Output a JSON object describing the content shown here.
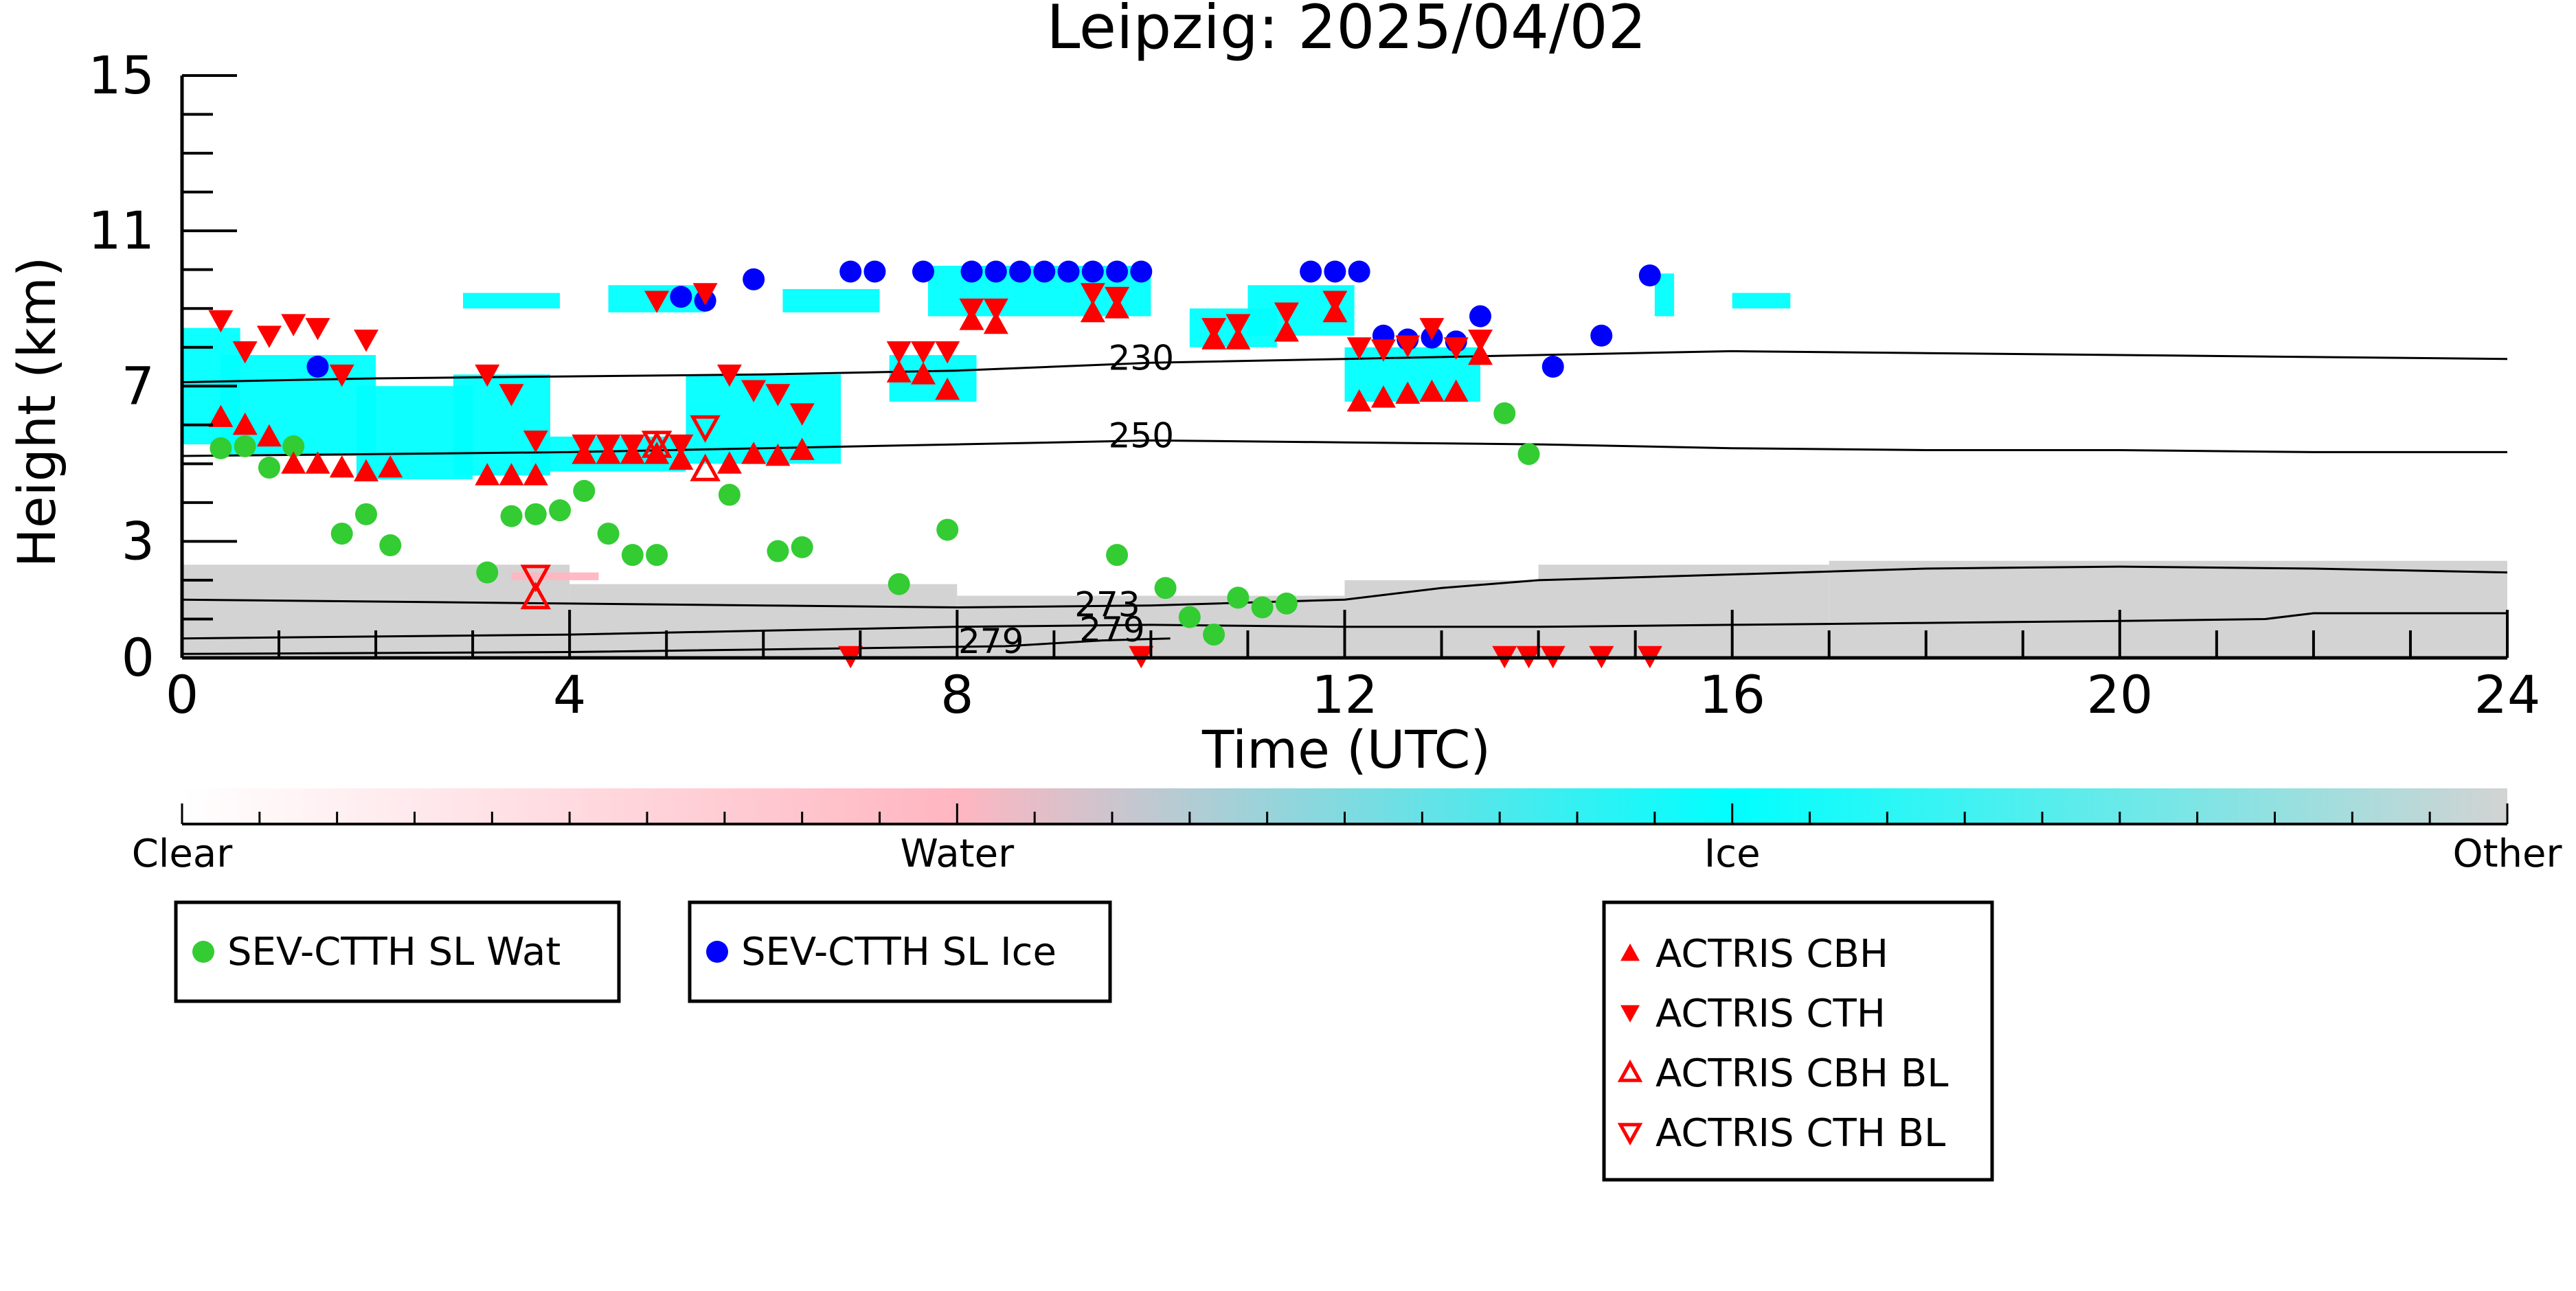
{
  "chart_data": {
    "type": "scatter",
    "title": "Leipzig: 2025/04/02",
    "xlabel": "Time (UTC)",
    "ylabel": "Height (km)",
    "xlim": [
      0,
      24
    ],
    "ylim": [
      0,
      15
    ],
    "x_ticks": [
      0,
      4,
      8,
      12,
      16,
      20,
      24
    ],
    "y_ticks": [
      0,
      3,
      7,
      11,
      15
    ],
    "colorbar": {
      "labels": [
        "Clear",
        "Water",
        "Ice",
        "Other"
      ],
      "colors": [
        "#ffffff",
        "#ffb6c1",
        "#00ffff",
        "#d3d3d3"
      ]
    },
    "isotherms": [
      {
        "label": "230",
        "points": [
          [
            0,
            7.1
          ],
          [
            2,
            7.2
          ],
          [
            4,
            7.25
          ],
          [
            6,
            7.3
          ],
          [
            8,
            7.4
          ],
          [
            10,
            7.6
          ],
          [
            12,
            7.7
          ],
          [
            14,
            7.8
          ],
          [
            16,
            7.9
          ],
          [
            18,
            7.85
          ],
          [
            20,
            7.8
          ],
          [
            22,
            7.75
          ],
          [
            24,
            7.7
          ]
        ]
      },
      {
        "label": "250",
        "points": [
          [
            0,
            5.2
          ],
          [
            2,
            5.25
          ],
          [
            4,
            5.3
          ],
          [
            6,
            5.4
          ],
          [
            8,
            5.5
          ],
          [
            10,
            5.6
          ],
          [
            12,
            5.55
          ],
          [
            14,
            5.5
          ],
          [
            16,
            5.4
          ],
          [
            18,
            5.35
          ],
          [
            20,
            5.35
          ],
          [
            22,
            5.3
          ],
          [
            24,
            5.3
          ]
        ]
      },
      {
        "label": "273",
        "points": [
          [
            0,
            1.5
          ],
          [
            2,
            1.45
          ],
          [
            4,
            1.4
          ],
          [
            6,
            1.35
          ],
          [
            8,
            1.3
          ],
          [
            10,
            1.35
          ],
          [
            12,
            1.5
          ],
          [
            13,
            1.8
          ],
          [
            14,
            2.0
          ],
          [
            16,
            2.15
          ],
          [
            18,
            2.3
          ],
          [
            20,
            2.35
          ],
          [
            22,
            2.3
          ],
          [
            24,
            2.2
          ]
        ]
      },
      {
        "label": "279",
        "points": [
          [
            0,
            0.5
          ],
          [
            2,
            0.55
          ],
          [
            4,
            0.6
          ],
          [
            6,
            0.7
          ],
          [
            8,
            0.8
          ],
          [
            10,
            0.85
          ],
          [
            12,
            0.8
          ],
          [
            14,
            0.8
          ],
          [
            16,
            0.85
          ],
          [
            18,
            0.9
          ],
          [
            20,
            0.95
          ],
          [
            21.5,
            1.0
          ],
          [
            22,
            1.15
          ],
          [
            24,
            1.15
          ]
        ]
      },
      {
        "label": "279",
        "points": [
          [
            0,
            0.1
          ],
          [
            4,
            0.15
          ],
          [
            7,
            0.25
          ],
          [
            8.5,
            0.3
          ],
          [
            9.5,
            0.45
          ],
          [
            10.2,
            0.5
          ]
        ]
      }
    ],
    "contour_label_positions": [
      {
        "label": "230",
        "x": 9.9,
        "y": 7.6
      },
      {
        "label": "250",
        "x": 9.9,
        "y": 5.6
      },
      {
        "label": "273",
        "x": 9.55,
        "y": 1.25
      },
      {
        "label": "279",
        "x": 9.6,
        "y": 0.6
      },
      {
        "label": "279",
        "x": 8.35,
        "y": 0.3
      }
    ],
    "cloud_mask": {
      "ice": [
        {
          "x0": 0.0,
          "x1": 0.6,
          "y0": 5.5,
          "y1": 8.5
        },
        {
          "x0": 0.4,
          "x1": 2.0,
          "y0": 5.2,
          "y1": 7.8
        },
        {
          "x0": 1.8,
          "x1": 3.0,
          "y0": 4.6,
          "y1": 7.0
        },
        {
          "x0": 2.8,
          "x1": 3.8,
          "y0": 4.7,
          "y1": 7.3
        },
        {
          "x0": 3.6,
          "x1": 5.2,
          "y0": 4.8,
          "y1": 5.7
        },
        {
          "x0": 5.2,
          "x1": 6.8,
          "y0": 5.0,
          "y1": 7.3
        },
        {
          "x0": 2.9,
          "x1": 3.9,
          "y0": 9.0,
          "y1": 9.4
        },
        {
          "x0": 4.4,
          "x1": 5.4,
          "y0": 8.9,
          "y1": 9.6
        },
        {
          "x0": 6.2,
          "x1": 7.2,
          "y0": 8.9,
          "y1": 9.5
        },
        {
          "x0": 7.3,
          "x1": 8.2,
          "y0": 6.6,
          "y1": 7.8
        },
        {
          "x0": 7.7,
          "x1": 10.0,
          "y0": 8.8,
          "y1": 10.1
        },
        {
          "x0": 10.4,
          "x1": 11.3,
          "y0": 8.0,
          "y1": 9.0
        },
        {
          "x0": 11.0,
          "x1": 12.1,
          "y0": 8.3,
          "y1": 9.6
        },
        {
          "x0": 12.0,
          "x1": 13.4,
          "y0": 6.6,
          "y1": 8.0
        },
        {
          "x0": 15.2,
          "x1": 15.4,
          "y0": 8.8,
          "y1": 9.9
        },
        {
          "x0": 16.0,
          "x1": 16.6,
          "y0": 9.0,
          "y1": 9.4
        }
      ],
      "water": [
        {
          "x0": 3.4,
          "x1": 4.3,
          "y0": 2.0,
          "y1": 2.2
        }
      ],
      "other": [
        {
          "x0": 0.0,
          "x1": 4.0,
          "y0": 0.0,
          "y1": 2.4
        },
        {
          "x0": 4.0,
          "x1": 8.0,
          "y0": 0.0,
          "y1": 1.9
        },
        {
          "x0": 8.0,
          "x1": 12.0,
          "y0": 0.0,
          "y1": 1.6
        },
        {
          "x0": 12.0,
          "x1": 14.0,
          "y0": 0.0,
          "y1": 2.0
        },
        {
          "x0": 14.0,
          "x1": 17.0,
          "y0": 0.0,
          "y1": 2.4
        },
        {
          "x0": 17.0,
          "x1": 24.0,
          "y0": 0.0,
          "y1": 2.5
        }
      ]
    },
    "series": [
      {
        "name": "SEV-CTTH SL Wat",
        "marker": "circle",
        "color": "#33cc33",
        "points": [
          [
            0.4,
            5.4
          ],
          [
            0.65,
            5.45
          ],
          [
            0.9,
            4.9
          ],
          [
            1.15,
            5.45
          ],
          [
            1.65,
            3.2
          ],
          [
            1.9,
            3.7
          ],
          [
            2.15,
            2.9
          ],
          [
            3.15,
            2.2
          ],
          [
            3.4,
            3.65
          ],
          [
            3.65,
            3.7
          ],
          [
            3.9,
            3.8
          ],
          [
            4.15,
            4.3
          ],
          [
            4.4,
            3.2
          ],
          [
            4.65,
            2.65
          ],
          [
            4.9,
            2.65
          ],
          [
            5.65,
            4.2
          ],
          [
            6.15,
            2.75
          ],
          [
            6.4,
            2.85
          ],
          [
            7.4,
            1.9
          ],
          [
            7.9,
            3.3
          ],
          [
            9.65,
            2.65
          ],
          [
            10.15,
            1.8
          ],
          [
            10.4,
            1.05
          ],
          [
            10.65,
            0.6
          ],
          [
            10.9,
            1.55
          ],
          [
            11.15,
            1.3
          ],
          [
            11.4,
            1.4
          ],
          [
            13.65,
            6.3
          ],
          [
            13.9,
            5.25
          ]
        ]
      },
      {
        "name": "SEV-CTTH SL Ice",
        "marker": "circle",
        "color": "#0000ff",
        "points": [
          [
            1.4,
            7.5
          ],
          [
            5.15,
            9.3
          ],
          [
            5.4,
            9.2
          ],
          [
            5.9,
            9.75
          ],
          [
            6.9,
            9.95
          ],
          [
            7.15,
            9.95
          ],
          [
            7.65,
            9.95
          ],
          [
            8.15,
            9.95
          ],
          [
            8.4,
            9.95
          ],
          [
            8.65,
            9.95
          ],
          [
            8.9,
            9.95
          ],
          [
            9.15,
            9.95
          ],
          [
            9.4,
            9.95
          ],
          [
            9.65,
            9.95
          ],
          [
            9.9,
            9.95
          ],
          [
            11.65,
            9.95
          ],
          [
            11.9,
            9.95
          ],
          [
            12.15,
            9.95
          ],
          [
            12.4,
            8.3
          ],
          [
            12.65,
            8.2
          ],
          [
            12.9,
            8.25
          ],
          [
            13.15,
            8.15
          ],
          [
            13.4,
            8.8
          ],
          [
            14.15,
            7.5
          ],
          [
            14.65,
            8.3
          ],
          [
            15.15,
            9.85
          ]
        ]
      },
      {
        "name": "ACTRIS CBH",
        "marker": "triangle-up",
        "color": "#ff0000",
        "points": [
          [
            0.4,
            6.2
          ],
          [
            0.65,
            6.0
          ],
          [
            0.9,
            5.7
          ],
          [
            1.15,
            5.0
          ],
          [
            1.4,
            5.0
          ],
          [
            1.65,
            4.9
          ],
          [
            1.9,
            4.8
          ],
          [
            2.15,
            4.9
          ],
          [
            3.15,
            4.7
          ],
          [
            3.4,
            4.7
          ],
          [
            3.65,
            4.7
          ],
          [
            4.15,
            5.25
          ],
          [
            4.4,
            5.25
          ],
          [
            4.65,
            5.25
          ],
          [
            4.9,
            5.25
          ],
          [
            5.15,
            5.1
          ],
          [
            5.65,
            5.0
          ],
          [
            5.9,
            5.25
          ],
          [
            6.15,
            5.2
          ],
          [
            6.4,
            5.35
          ],
          [
            7.4,
            7.35
          ],
          [
            7.65,
            7.3
          ],
          [
            7.9,
            6.9
          ],
          [
            8.15,
            8.7
          ],
          [
            8.4,
            8.6
          ],
          [
            9.4,
            8.9
          ],
          [
            9.65,
            9.0
          ],
          [
            10.65,
            8.2
          ],
          [
            10.9,
            8.2
          ],
          [
            11.4,
            8.4
          ],
          [
            11.9,
            8.9
          ],
          [
            12.15,
            6.6
          ],
          [
            12.4,
            6.7
          ],
          [
            12.65,
            6.8
          ],
          [
            12.9,
            6.85
          ],
          [
            13.15,
            6.85
          ],
          [
            13.4,
            7.8
          ]
        ]
      },
      {
        "name": "ACTRIS CTH",
        "marker": "triangle-down",
        "color": "#ff0000",
        "points": [
          [
            0.4,
            8.7
          ],
          [
            0.65,
            7.9
          ],
          [
            0.9,
            8.3
          ],
          [
            1.15,
            8.6
          ],
          [
            1.4,
            8.5
          ],
          [
            1.65,
            7.3
          ],
          [
            1.9,
            8.2
          ],
          [
            3.15,
            7.3
          ],
          [
            3.4,
            6.8
          ],
          [
            3.65,
            5.6
          ],
          [
            4.15,
            5.5
          ],
          [
            4.4,
            5.5
          ],
          [
            4.65,
            5.5
          ],
          [
            4.9,
            9.2
          ],
          [
            5.15,
            5.5
          ],
          [
            5.4,
            9.4
          ],
          [
            5.65,
            7.3
          ],
          [
            5.9,
            6.9
          ],
          [
            6.15,
            6.8
          ],
          [
            6.4,
            6.3
          ],
          [
            7.4,
            7.9
          ],
          [
            7.65,
            7.9
          ],
          [
            7.9,
            7.9
          ],
          [
            8.15,
            9.0
          ],
          [
            8.4,
            9.0
          ],
          [
            9.4,
            9.4
          ],
          [
            9.65,
            9.3
          ],
          [
            10.65,
            8.5
          ],
          [
            10.9,
            8.6
          ],
          [
            11.4,
            8.9
          ],
          [
            11.9,
            9.2
          ],
          [
            12.15,
            8.0
          ],
          [
            12.4,
            7.95
          ],
          [
            12.65,
            8.05
          ],
          [
            12.9,
            8.5
          ],
          [
            13.15,
            8.0
          ],
          [
            13.4,
            8.2
          ],
          [
            6.9,
            0.05
          ],
          [
            9.9,
            0.05
          ],
          [
            13.65,
            0.05
          ],
          [
            13.9,
            0.05
          ],
          [
            14.15,
            0.05
          ],
          [
            14.65,
            0.05
          ],
          [
            15.15,
            0.05
          ]
        ]
      },
      {
        "name": "ACTRIS CBH BL",
        "marker": "triangle-up-open",
        "color": "#ff0000",
        "points": [
          [
            3.65,
            1.55
          ],
          [
            4.9,
            5.45
          ],
          [
            5.4,
            4.85
          ]
        ]
      },
      {
        "name": "ACTRIS CTH BL",
        "marker": "triangle-down-open",
        "color": "#ff0000",
        "points": [
          [
            3.65,
            2.1
          ],
          [
            4.9,
            5.55
          ],
          [
            5.4,
            5.95
          ]
        ]
      }
    ],
    "legends": {
      "satellite": [
        "SEV-CTTH SL Wat",
        "SEV-CTTH SL Ice"
      ],
      "actris": [
        "ACTRIS CBH",
        "ACTRIS CTH",
        "ACTRIS CBH BL",
        "ACTRIS CTH BL"
      ]
    }
  }
}
